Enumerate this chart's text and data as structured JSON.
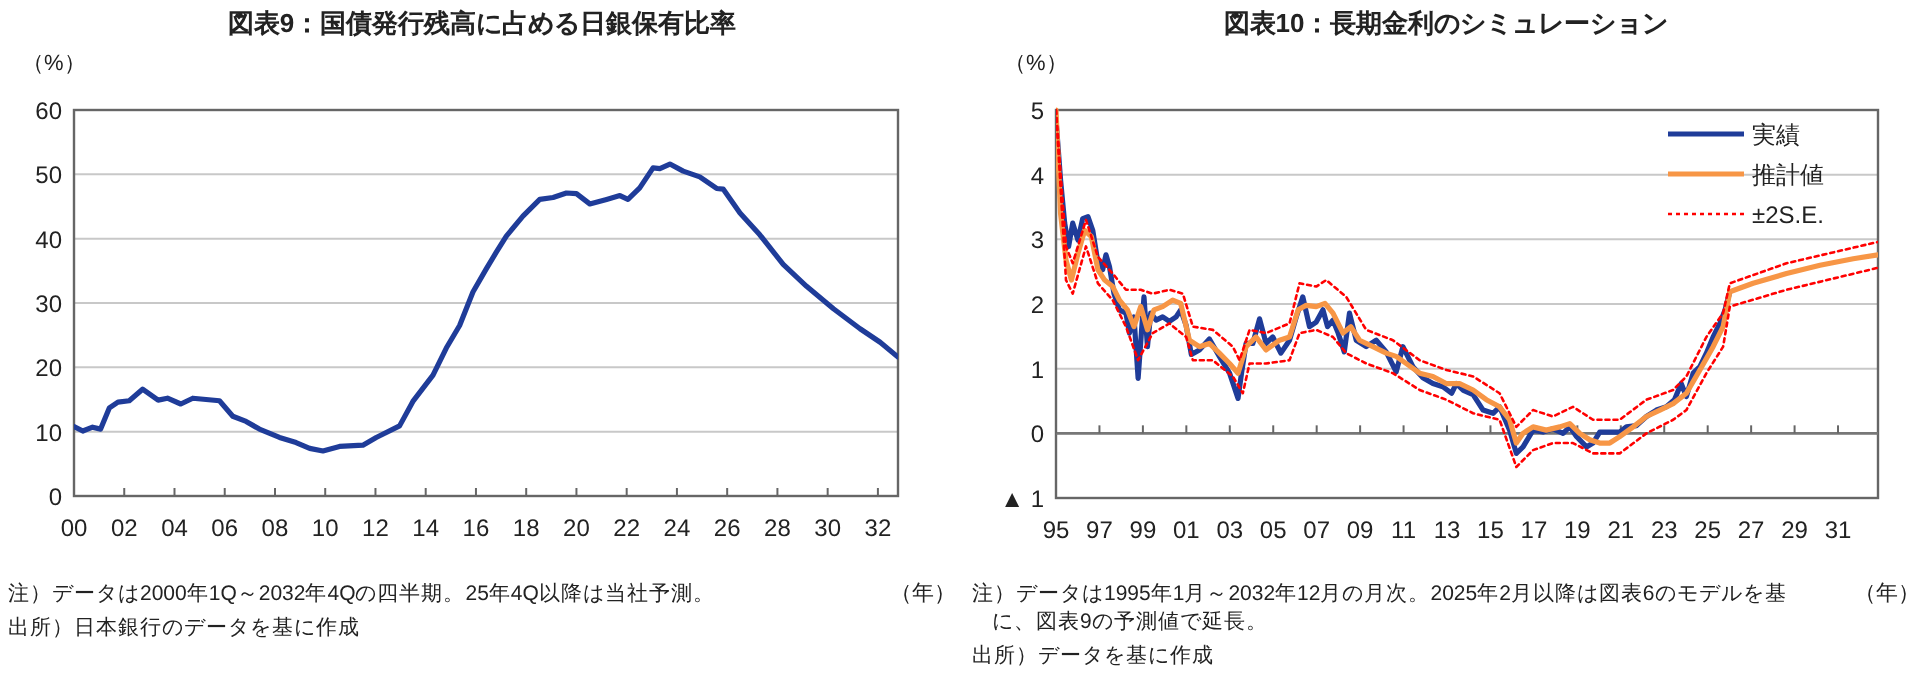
{
  "chart_data": [
    {
      "type": "line",
      "title": "図表9：国債発行残高に占める日銀保有比率",
      "ylabel": "（%）",
      "xlabel": "（年）",
      "xlim": [
        2000,
        2032.8
      ],
      "xticks": [
        {
          "value": 2000,
          "label": "00"
        },
        {
          "value": 2002,
          "label": "02"
        },
        {
          "value": 2004,
          "label": "04"
        },
        {
          "value": 2006,
          "label": "06"
        },
        {
          "value": 2008,
          "label": "08"
        },
        {
          "value": 2010,
          "label": "10"
        },
        {
          "value": 2012,
          "label": "12"
        },
        {
          "value": 2014,
          "label": "14"
        },
        {
          "value": 2016,
          "label": "16"
        },
        {
          "value": 2018,
          "label": "18"
        },
        {
          "value": 2020,
          "label": "20"
        },
        {
          "value": 2022,
          "label": "22"
        },
        {
          "value": 2024,
          "label": "24"
        },
        {
          "value": 2026,
          "label": "26"
        },
        {
          "value": 2028,
          "label": "28"
        },
        {
          "value": 2030,
          "label": "30"
        },
        {
          "value": 2032,
          "label": "32"
        }
      ],
      "ylim": [
        0,
        60
      ],
      "yticks": [
        0,
        10,
        20,
        30,
        40,
        50,
        60
      ],
      "grid": "y",
      "legend": false,
      "series": [
        {
          "color": "#1f3c99",
          "x": [
            2000.0,
            2000.35,
            2000.74,
            2001.06,
            2001.41,
            2001.75,
            2002.2,
            2002.73,
            2003.35,
            2003.72,
            2004.25,
            2004.73,
            2005.79,
            2006.32,
            2006.85,
            2007.38,
            2008.18,
            2008.84,
            2009.38,
            2009.91,
            2010.57,
            2011.5,
            2012.03,
            2012.96,
            2013.49,
            2014.29,
            2014.82,
            2015.35,
            2015.88,
            2016.41,
            2016.81,
            2017.21,
            2017.87,
            2018.54,
            2019.07,
            2019.6,
            2020.0,
            2020.53,
            2021.2,
            2021.73,
            2022.05,
            2022.52,
            2023.05,
            2023.32,
            2023.72,
            2024.25,
            2024.91,
            2025.58,
            2025.84,
            2026.51,
            2027.3,
            2028.23,
            2029.16,
            2030.23,
            2031.29,
            2032.09,
            2032.8
          ],
          "values": [
            10.8,
            10.1,
            10.7,
            10.4,
            13.7,
            14.6,
            14.8,
            16.6,
            14.9,
            15.2,
            14.3,
            15.2,
            14.8,
            12.4,
            11.6,
            10.4,
            9.1,
            8.3,
            7.4,
            7.0,
            7.7,
            7.9,
            9.1,
            10.9,
            14.7,
            18.8,
            23.0,
            26.5,
            31.7,
            35.3,
            37.9,
            40.4,
            43.5,
            46.1,
            46.4,
            47.1,
            47.0,
            45.4,
            46.1,
            46.7,
            46.1,
            47.9,
            51.0,
            50.9,
            51.6,
            50.5,
            49.6,
            47.8,
            47.7,
            44.0,
            40.6,
            36.0,
            32.6,
            29.1,
            26.0,
            23.9,
            21.6
          ]
        }
      ],
      "annotations": [
        "注）データは2000年1Q～2032年4Qの四半期。25年4Q以降は当社予測。",
        "出所）日本銀行のデータを基に作成"
      ]
    },
    {
      "type": "line",
      "title": "図表10：長期金利のシミュレーション",
      "ylabel": "（%）",
      "xlabel": "（年）",
      "xlim": [
        1995,
        2032.84
      ],
      "xticks": [
        {
          "value": 1995,
          "label": "95"
        },
        {
          "value": 1997,
          "label": "97"
        },
        {
          "value": 1999,
          "label": "99"
        },
        {
          "value": 2001,
          "label": "01"
        },
        {
          "value": 2003,
          "label": "03"
        },
        {
          "value": 2005,
          "label": "05"
        },
        {
          "value": 2007,
          "label": "07"
        },
        {
          "value": 2009,
          "label": "09"
        },
        {
          "value": 2011,
          "label": "11"
        },
        {
          "value": 2013,
          "label": "13"
        },
        {
          "value": 2015,
          "label": "15"
        },
        {
          "value": 2017,
          "label": "17"
        },
        {
          "value": 2019,
          "label": "19"
        },
        {
          "value": 2021,
          "label": "21"
        },
        {
          "value": 2023,
          "label": "23"
        },
        {
          "value": 2025,
          "label": "25"
        },
        {
          "value": 2027,
          "label": "27"
        },
        {
          "value": 2029,
          "label": "29"
        },
        {
          "value": 2031,
          "label": "31"
        }
      ],
      "ylim": [
        -1,
        5
      ],
      "yticks": [
        {
          "value": -1,
          "label": "▲ 1"
        },
        0,
        1,
        2,
        3,
        4,
        5
      ],
      "grid": "y",
      "legend": "top right",
      "series": [
        {
          "name": "実績",
          "color": "#1f3c99",
          "line_style": "solid",
          "x": [
            1995.0,
            1995.21,
            1995.4,
            1995.58,
            1995.77,
            1996.01,
            1996.23,
            1996.47,
            1996.69,
            1996.9,
            1997.15,
            1997.3,
            1997.46,
            1997.67,
            1997.92,
            1998.22,
            1998.38,
            1998.59,
            1998.78,
            1998.93,
            1999.05,
            1999.21,
            1999.36,
            1999.61,
            1999.91,
            2000.22,
            2000.53,
            2000.74,
            2000.99,
            2001.23,
            2001.6,
            2002.06,
            2002.52,
            2002.99,
            2003.38,
            2003.54,
            2003.75,
            2004.06,
            2004.37,
            2004.67,
            2004.98,
            2005.35,
            2005.75,
            2006.06,
            2006.36,
            2006.67,
            2006.98,
            2007.29,
            2007.5,
            2007.75,
            2007.99,
            2008.27,
            2008.51,
            2008.82,
            2009.28,
            2009.74,
            2010.2,
            2010.66,
            2010.97,
            2011.43,
            2011.89,
            2012.35,
            2012.81,
            2013.21,
            2013.43,
            2013.73,
            2014.2,
            2014.66,
            2015.12,
            2015.42,
            2015.88,
            2016.19,
            2016.5,
            2016.96,
            2017.42,
            2017.88,
            2018.34,
            2018.65,
            2018.96,
            2019.42,
            2019.72,
            2020.03,
            2020.49,
            2020.95,
            2021.26,
            2021.72,
            2022.18,
            2022.64,
            2023.1,
            2023.47,
            2023.78,
            2024.02,
            2024.33,
            2024.64,
            2024.94,
            2025.25,
            2025.56,
            2025.8,
            2026.02
          ],
          "values": [
            4.85,
            3.92,
            3.25,
            2.89,
            3.25,
            2.99,
            3.32,
            3.35,
            3.14,
            2.7,
            2.53,
            2.76,
            2.58,
            2.16,
            1.91,
            1.86,
            1.55,
            1.8,
            0.85,
            1.55,
            2.11,
            1.34,
            1.86,
            1.75,
            1.8,
            1.73,
            1.8,
            1.91,
            1.67,
            1.22,
            1.29,
            1.46,
            1.19,
            0.93,
            0.54,
            0.93,
            1.39,
            1.39,
            1.77,
            1.39,
            1.49,
            1.24,
            1.44,
            1.8,
            2.11,
            1.65,
            1.72,
            1.91,
            1.65,
            1.75,
            1.55,
            1.26,
            1.86,
            1.44,
            1.34,
            1.44,
            1.26,
            0.95,
            1.34,
            1.03,
            0.86,
            0.77,
            0.72,
            0.62,
            0.77,
            0.67,
            0.6,
            0.36,
            0.31,
            0.41,
            0.05,
            -0.31,
            -0.21,
            0.05,
            0.02,
            0.07,
            0.0,
            0.1,
            -0.05,
            -0.21,
            -0.15,
            0.02,
            0.02,
            0.02,
            0.1,
            0.12,
            0.26,
            0.36,
            0.41,
            0.52,
            0.77,
            0.57,
            0.93,
            1.03,
            1.24,
            1.49,
            1.7,
            1.91,
            2.19
          ]
        },
        {
          "name": "推計値",
          "color": "#f79646",
          "line_style": "solid",
          "x": [
            1995.0,
            1995.21,
            1995.46,
            1995.71,
            1996.01,
            1996.32,
            1996.63,
            1996.93,
            1997.24,
            1997.61,
            1997.92,
            1998.29,
            1998.59,
            1998.9,
            1999.21,
            1999.51,
            1999.91,
            2000.37,
            2000.74,
            2001.14,
            2001.6,
            2002.06,
            2002.52,
            2002.99,
            2003.38,
            2003.75,
            2004.21,
            2004.67,
            2005.29,
            2005.75,
            2006.15,
            2006.52,
            2006.98,
            2007.38,
            2007.75,
            2008.21,
            2008.57,
            2008.97,
            2009.59,
            2010.2,
            2010.66,
            2011.12,
            2011.74,
            2012.35,
            2012.96,
            2013.58,
            2014.2,
            2014.81,
            2015.42,
            2015.88,
            2016.19,
            2016.5,
            2016.96,
            2017.57,
            2018.19,
            2018.65,
            2019.11,
            2019.57,
            2020.03,
            2020.49,
            2020.95,
            2021.57,
            2022.18,
            2022.8,
            2023.41,
            2024.02,
            2024.64,
            2025.25,
            2025.71,
            2026.02,
            2027.09,
            2028.63,
            2030.17,
            2031.7,
            2032.84
          ],
          "values": [
            5.0,
            3.4,
            2.68,
            2.37,
            2.78,
            3.14,
            3.04,
            2.53,
            2.37,
            2.27,
            2.06,
            1.91,
            1.65,
            1.96,
            1.6,
            1.91,
            1.96,
            2.06,
            2.01,
            1.44,
            1.34,
            1.39,
            1.24,
            1.08,
            0.93,
            1.34,
            1.49,
            1.29,
            1.44,
            1.49,
            1.91,
            1.98,
            1.96,
            2.01,
            1.86,
            1.55,
            1.65,
            1.44,
            1.34,
            1.24,
            1.19,
            1.08,
            0.93,
            0.88,
            0.77,
            0.77,
            0.67,
            0.52,
            0.41,
            0.21,
            -0.15,
            0.0,
            0.1,
            0.05,
            0.1,
            0.15,
            0.0,
            -0.1,
            -0.15,
            -0.15,
            -0.05,
            0.1,
            0.26,
            0.36,
            0.46,
            0.62,
            0.98,
            1.34,
            1.65,
            2.19,
            2.32,
            2.47,
            2.6,
            2.7,
            2.76
          ]
        },
        {
          "name": "±2S.E.",
          "color": "#ff0000",
          "line_style": "dotted",
          "x": [
            1995.0,
            1995.46,
            1995.77,
            1996.38,
            1996.93,
            1997.61,
            1998.22,
            1998.9,
            1999.45,
            2000.22,
            2000.84,
            2001.3,
            2002.22,
            2003.14,
            2003.45,
            2003.91,
            2004.67,
            2005.75,
            2006.21,
            2006.98,
            2007.44,
            2008.36,
            2009.28,
            2010.51,
            2011.74,
            2012.97,
            2014.2,
            2015.42,
            2016.19,
            2016.96,
            2017.88,
            2018.8,
            2019.72,
            2020.95,
            2022.18,
            2023.41,
            2024.02,
            2024.94,
            2025.71,
            2026.02,
            2028.63,
            2032.84
          ],
          "values": [
            5.0,
            2.89,
            2.63,
            3.3,
            2.73,
            2.47,
            2.22,
            2.22,
            2.16,
            2.22,
            2.16,
            1.65,
            1.6,
            1.34,
            1.13,
            1.6,
            1.55,
            1.7,
            2.32,
            2.27,
            2.37,
            2.11,
            1.6,
            1.44,
            1.13,
            0.98,
            0.88,
            0.62,
            0.1,
            0.36,
            0.26,
            0.41,
            0.21,
            0.21,
            0.52,
            0.67,
            0.88,
            1.49,
            1.86,
            2.32,
            2.63,
            2.96
          ]
        },
        {
          "color": "#ff0000",
          "line_style": "dotted",
          "x": [
            1995.0,
            1995.46,
            1995.77,
            1996.38,
            1996.93,
            1997.61,
            1998.22,
            1998.78,
            1999.45,
            2000.22,
            2000.99,
            2001.3,
            2002.22,
            2003.14,
            2003.6,
            2003.91,
            2004.67,
            2005.75,
            2006.21,
            2006.98,
            2007.75,
            2008.36,
            2009.28,
            2010.51,
            2011.74,
            2012.97,
            2014.2,
            2015.42,
            2016.19,
            2016.96,
            2017.88,
            2018.8,
            2019.72,
            2020.95,
            2022.18,
            2023.41,
            2024.02,
            2024.94,
            2025.71,
            2026.02,
            2028.63,
            2032.84
          ],
          "values": [
            5.0,
            2.37,
            2.16,
            2.89,
            2.32,
            2.06,
            1.65,
            1.13,
            1.55,
            1.7,
            1.49,
            1.13,
            1.13,
            0.88,
            0.62,
            1.08,
            1.08,
            1.13,
            1.55,
            1.6,
            1.49,
            1.24,
            1.08,
            0.93,
            0.67,
            0.52,
            0.31,
            0.21,
            -0.52,
            -0.26,
            -0.15,
            -0.15,
            -0.31,
            -0.31,
            0.0,
            0.21,
            0.36,
            0.93,
            1.34,
            1.96,
            2.22,
            2.56
          ]
        }
      ],
      "annotations": [
        "注）データは1995年1月～2032年12月の月次。2025年2月以降は図表6のモデルを基に、図表9の予測値で延長。",
        "出所）データを基に作成"
      ]
    }
  ]
}
